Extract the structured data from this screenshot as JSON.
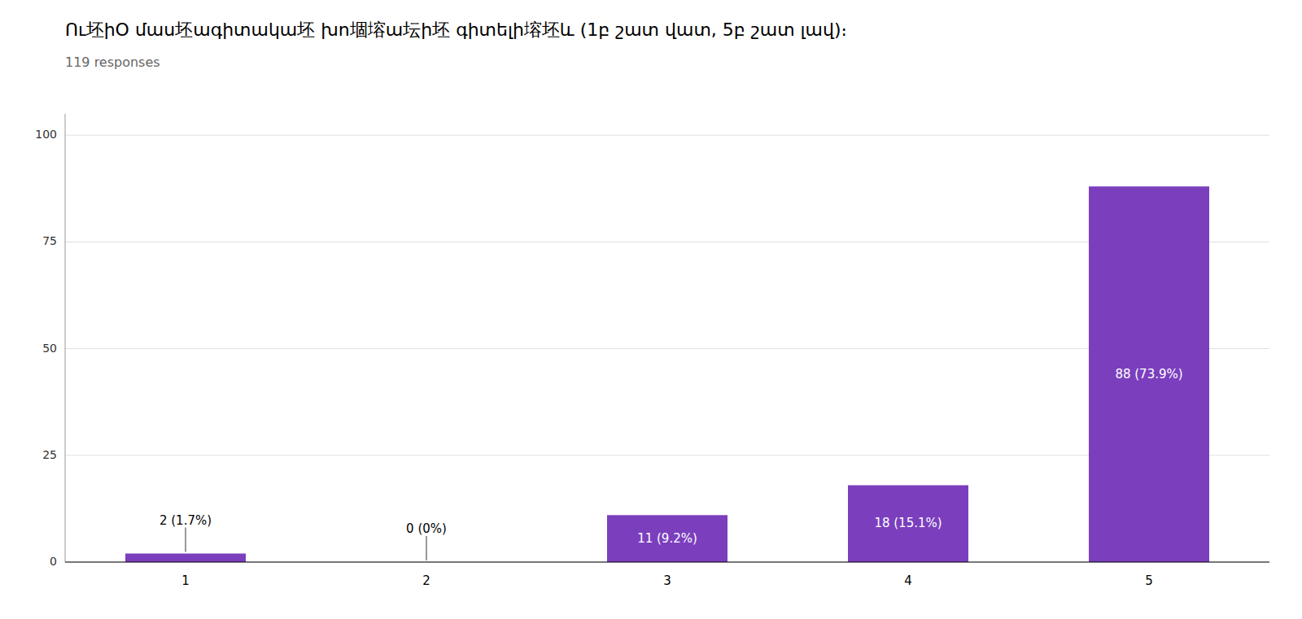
{
  "chart_data": {
    "type": "bar",
    "title": "Ու坯իՕ մաս坯ագիտակա坯 խո堌塎ա坛ի坯 գիտելի塎坯և (1բ շատ վատ, 5բ շատ լավ)։",
    "subtitle": "119 responses",
    "categories": [
      "1",
      "2",
      "3",
      "4",
      "5"
    ],
    "values": [
      2,
      0,
      11,
      18,
      88
    ],
    "value_labels": [
      "2 (1.7%)",
      "0 (0%)",
      "11 (9.2%)",
      "18 (15.1%)",
      "88 (73.9%)"
    ],
    "data_labels": true,
    "color": "#7B3FBE",
    "ylim": [
      0,
      105
    ],
    "yticks": [
      0,
      25,
      50,
      75,
      100
    ],
    "grid": true
  }
}
